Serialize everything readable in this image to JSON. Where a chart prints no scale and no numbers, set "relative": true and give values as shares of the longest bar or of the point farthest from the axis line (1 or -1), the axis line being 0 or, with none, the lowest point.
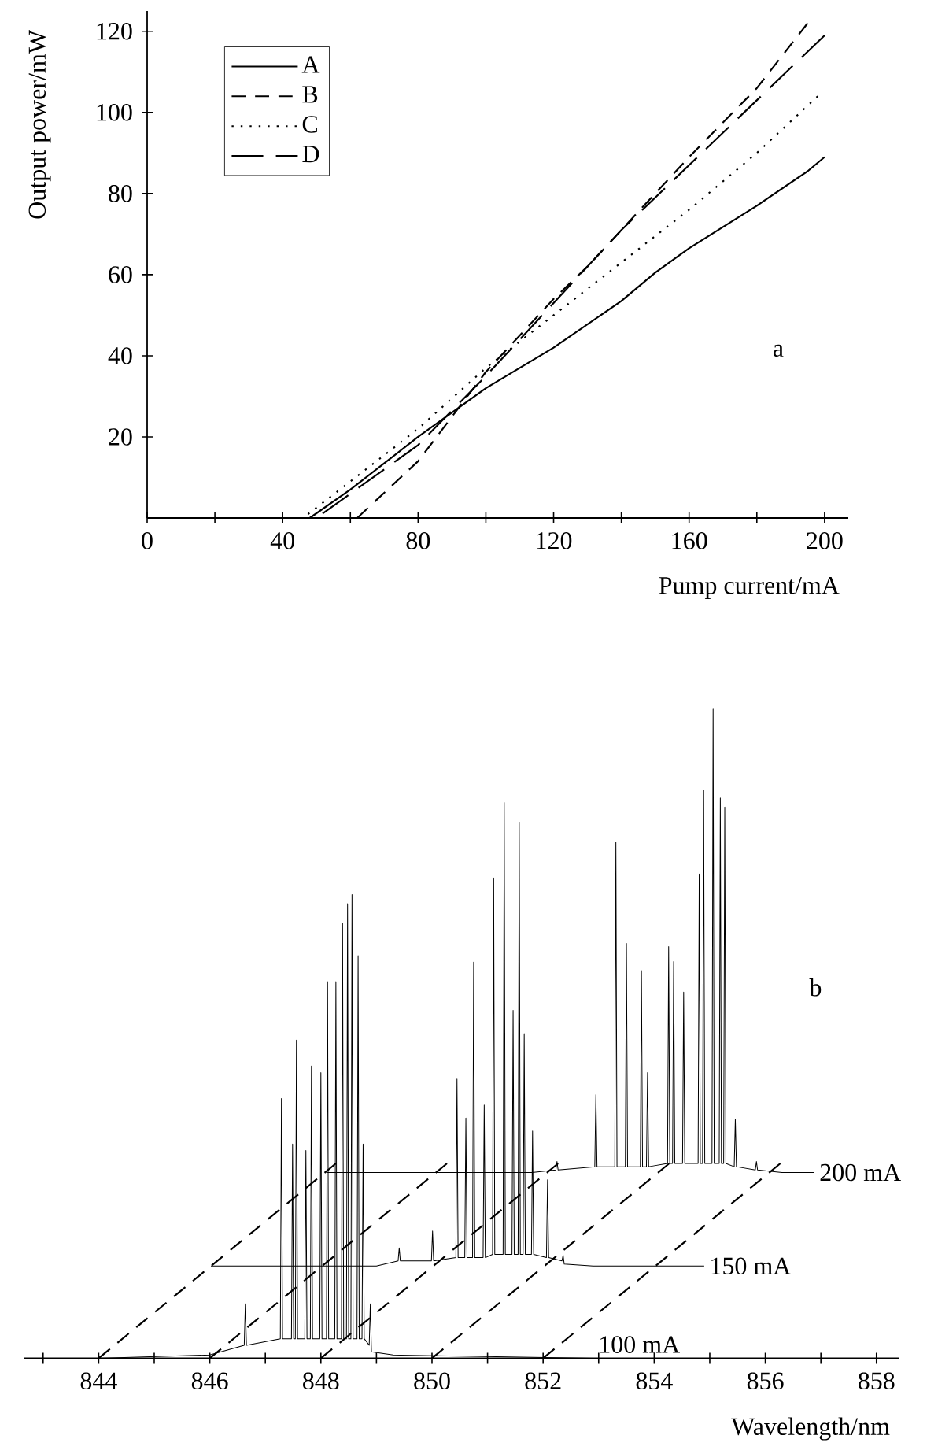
{
  "chart_data": [
    {
      "type": "line",
      "xlabel": "Pump current/mA",
      "ylabel": "Output power/mW",
      "annotations": [
        "a"
      ],
      "xlim": [
        0,
        207
      ],
      "ylim": [
        0,
        125
      ],
      "xticks": [
        0,
        {
          "value": 20,
          "label": null
        },
        40,
        {
          "value": 60,
          "label": null
        },
        80,
        {
          "value": 100,
          "label": null
        },
        120,
        {
          "value": 140,
          "label": null
        },
        160,
        {
          "value": 180,
          "label": null
        },
        200
      ],
      "yticks": [
        20,
        40,
        60,
        80,
        100,
        120
      ],
      "legend": "top left",
      "marker": "none",
      "series": [
        {
          "name": "A",
          "color": "#000000",
          "line_style": "solid",
          "x": [
            0,
            48,
            60,
            80,
            100,
            120,
            140,
            150,
            160,
            180,
            195,
            200
          ],
          "values": [
            0,
            0,
            7,
            20,
            32,
            42,
            53.5,
            60.5,
            66.5,
            77,
            85.5,
            89
          ]
        },
        {
          "name": "B",
          "color": "#000000",
          "line_style": "dashed",
          "x": [
            0,
            62,
            80,
            90,
            100,
            120,
            130,
            140,
            160,
            180,
            195
          ],
          "values": [
            0,
            0,
            14,
            25,
            36,
            54,
            62,
            71,
            89,
            106,
            122
          ]
        },
        {
          "name": "C",
          "color": "#000000",
          "line_style": "dotted",
          "x": [
            0,
            46,
            60,
            80,
            100,
            120,
            140,
            160,
            180,
            198
          ],
          "values": [
            0,
            0,
            9,
            22,
            37,
            50,
            63,
            76,
            90,
            104
          ]
        },
        {
          "name": "D",
          "color": "#000000",
          "line_style": "longdashed",
          "x": [
            0,
            50,
            70,
            80,
            100,
            120,
            140,
            160,
            180,
            200
          ],
          "values": [
            0,
            0,
            12,
            18,
            35,
            53,
            71,
            87,
            103,
            119
          ]
        }
      ]
    },
    {
      "type": "line",
      "xlabel": "Wavelength/nm",
      "annotations": [
        "b"
      ],
      "relative": true,
      "xlim": [
        842.66,
        858.4
      ],
      "xticks": [
        {
          "value": 843,
          "label": null
        },
        844,
        {
          "value": 845,
          "label": null
        },
        846,
        {
          "value": 847,
          "label": null
        },
        848,
        {
          "value": 849,
          "label": null
        },
        850,
        {
          "value": 851,
          "label": null
        },
        852,
        {
          "value": 853,
          "label": null
        },
        854,
        {
          "value": 855,
          "label": null
        },
        856,
        {
          "value": 857,
          "label": null
        },
        858
      ],
      "legend": false,
      "marker": "none",
      "series": [
        {
          "color": "#000000",
          "line_style": "dashed",
          "x": [
            844,
            848.27
          ],
          "values": [
            0,
            0.3
          ]
        },
        {
          "color": "#000000",
          "line_style": "dashed",
          "x": [
            846,
            850.27
          ],
          "values": [
            0,
            0.3
          ]
        },
        {
          "color": "#000000",
          "line_style": "dashed",
          "x": [
            848,
            852.27
          ],
          "values": [
            0,
            0.3
          ]
        },
        {
          "color": "#000000",
          "line_style": "dashed",
          "x": [
            850,
            854.27
          ],
          "values": [
            0,
            0.3
          ]
        },
        {
          "color": "#000000",
          "line_style": "dashed",
          "x": [
            852,
            856.27
          ],
          "values": [
            0,
            0.3
          ]
        },
        {
          "name": "100 mA",
          "color": "#000000",
          "line_style": "solid",
          "x": [
            844,
            846.0,
            846.62,
            846.64,
            846.66,
            847.27,
            847.29,
            847.31,
            847.47,
            847.49,
            847.51,
            847.54,
            847.56,
            847.58,
            847.71,
            847.73,
            847.75,
            847.81,
            847.83,
            847.85,
            847.98,
            848.0,
            848.02,
            848.1,
            848.12,
            848.14,
            848.25,
            848.27,
            848.29,
            848.37,
            848.39,
            848.41,
            848.46,
            848.48,
            848.5,
            848.54,
            848.56,
            848.58,
            848.65,
            848.67,
            848.69,
            848.74,
            848.76,
            848.78,
            848.87,
            848.89,
            848.91,
            849.3,
            852.9
          ],
          "values": [
            0,
            0.005,
            0.02,
            0.084,
            0.02,
            0.03,
            0.4,
            0.03,
            0.03,
            0.33,
            0.03,
            0.03,
            0.49,
            0.03,
            0.03,
            0.32,
            0.03,
            0.03,
            0.45,
            0.03,
            0.03,
            0.44,
            0.03,
            0.03,
            0.58,
            0.03,
            0.03,
            0.58,
            0.03,
            0.03,
            0.67,
            0.03,
            0.03,
            0.7,
            0.03,
            0.03,
            0.714,
            0.03,
            0.03,
            0.62,
            0.03,
            0.03,
            0.33,
            0.03,
            0.02,
            0.084,
            0.01,
            0.005,
            0
          ]
        },
        {
          "name": "150 mA",
          "color": "#000000",
          "line_style": "solid",
          "x": [
            846.02,
            849.0,
            849.39,
            849.41,
            849.43,
            849.99,
            850.01,
            850.03,
            850.43,
            850.45,
            850.47,
            850.59,
            850.61,
            850.63,
            850.73,
            850.75,
            850.77,
            850.92,
            850.94,
            850.96,
            851.09,
            851.11,
            851.13,
            851.28,
            851.3,
            851.32,
            851.44,
            851.46,
            851.48,
            851.55,
            851.57,
            851.59,
            851.64,
            851.66,
            851.68,
            851.79,
            851.81,
            851.83,
            852.06,
            852.08,
            852.1,
            852.34,
            852.36,
            852.38,
            852.9,
            854.9
          ],
          "values": [
            0.142,
            0.142,
            0.15,
            0.17,
            0.15,
            0.15,
            0.196,
            0.15,
            0.155,
            0.43,
            0.155,
            0.155,
            0.37,
            0.155,
            0.155,
            0.61,
            0.155,
            0.155,
            0.39,
            0.155,
            0.16,
            0.74,
            0.16,
            0.16,
            0.856,
            0.16,
            0.16,
            0.536,
            0.16,
            0.16,
            0.826,
            0.16,
            0.16,
            0.5,
            0.16,
            0.16,
            0.35,
            0.16,
            0.155,
            0.275,
            0.155,
            0.15,
            0.159,
            0.145,
            0.142,
            0.142
          ]
        },
        {
          "name": "200 mA",
          "color": "#000000",
          "line_style": "solid",
          "x": [
            848.1,
            851.8,
            852.23,
            852.25,
            852.27,
            852.93,
            852.95,
            852.97,
            853.29,
            853.31,
            853.33,
            853.48,
            853.5,
            853.52,
            853.75,
            853.77,
            853.79,
            853.86,
            853.88,
            853.9,
            854.24,
            854.26,
            854.28,
            854.33,
            854.35,
            854.37,
            854.51,
            854.53,
            854.55,
            854.79,
            854.81,
            854.83,
            854.87,
            854.89,
            854.91,
            855.04,
            855.06,
            855.08,
            855.17,
            855.19,
            855.21,
            855.25,
            855.27,
            855.29,
            855.44,
            855.46,
            855.48,
            855.82,
            855.84,
            855.86,
            856.3,
            856.88
          ],
          "values": [
            0.286,
            0.286,
            0.29,
            0.303,
            0.29,
            0.295,
            0.406,
            0.295,
            0.295,
            0.795,
            0.295,
            0.295,
            0.639,
            0.295,
            0.295,
            0.597,
            0.295,
            0.295,
            0.44,
            0.295,
            0.3,
            0.634,
            0.3,
            0.3,
            0.611,
            0.3,
            0.3,
            0.564,
            0.3,
            0.3,
            0.746,
            0.3,
            0.3,
            0.875,
            0.3,
            0.3,
            1.0,
            0.3,
            0.3,
            0.863,
            0.3,
            0.3,
            0.849,
            0.3,
            0.295,
            0.368,
            0.295,
            0.29,
            0.303,
            0.29,
            0.286,
            0.286
          ]
        }
      ]
    }
  ]
}
